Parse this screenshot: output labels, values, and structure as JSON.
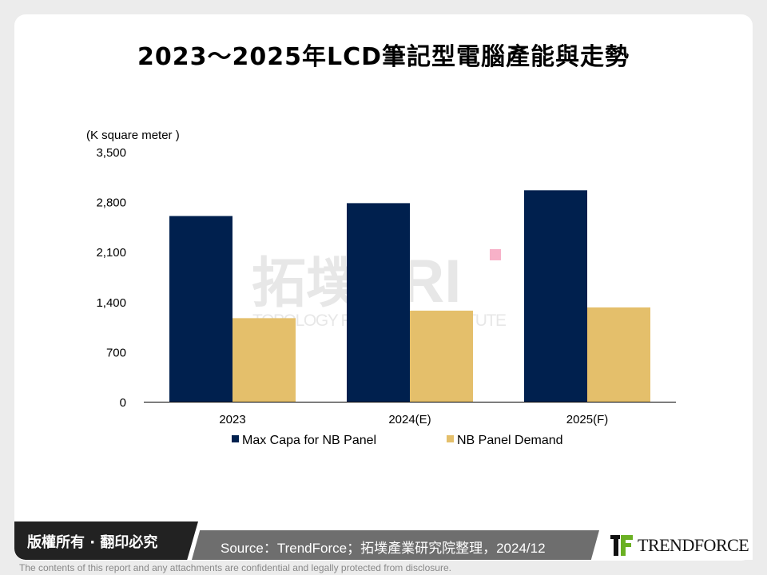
{
  "title": "2023～2025年LCD筆記型電腦產能與走勢",
  "chart_data": {
    "type": "bar",
    "title": "2023～2025年LCD筆記型電腦產能與走勢",
    "ylabel": "(K square meter )",
    "categories": [
      "2023",
      "2024(E)",
      "2025(F)"
    ],
    "series": [
      {
        "name": "Max Capa for NB Panel",
        "values": [
          2600,
          2780,
          2960
        ],
        "color": "#00204e"
      },
      {
        "name": "NB Panel Demand",
        "values": [
          1170,
          1275,
          1320
        ],
        "color": "#e4bf6b"
      }
    ],
    "ylim": [
      0,
      3500
    ],
    "yticks": [
      "0",
      "700",
      "1,400",
      "2,100",
      "2,800",
      "3,500"
    ],
    "ytick_values": [
      0,
      700,
      1400,
      2100,
      2800,
      3500
    ],
    "grid": false,
    "legend": "bottom"
  },
  "watermark": {
    "cn": "拓墣",
    "en": "TOPOLOGY RESEARCH INSTITUTE",
    "mark": "TRI"
  },
  "footer": {
    "copyright": "版權所有 · 翻印必究",
    "source": "Source：TrendForce；拓墣產業研究院整理，2024/12",
    "logo": "TRENDFORCE",
    "disclaimer": "The contents of this report and any attachments are confidential and legally protected from disclosure."
  }
}
